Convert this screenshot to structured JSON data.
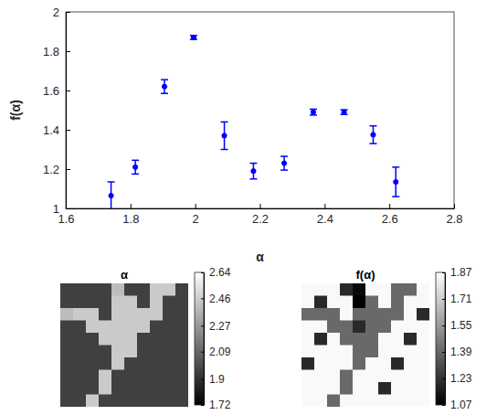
{
  "chart_data": [
    {
      "type": "scatter",
      "x_label": "α",
      "y_label": "f(α)",
      "color": "#0000ff",
      "marker": "o",
      "grid": false,
      "x": [
        1.74,
        1.815,
        1.905,
        1.995,
        2.09,
        2.18,
        2.275,
        2.365,
        2.46,
        2.55,
        2.62
      ],
      "y": [
        1.065,
        1.21,
        1.62,
        1.87,
        1.37,
        1.19,
        1.23,
        1.49,
        1.49,
        1.375,
        1.135
      ],
      "errors": [
        0.07,
        0.035,
        0.035,
        0.01,
        0.07,
        0.04,
        0.035,
        0.015,
        0.012,
        0.045,
        0.075
      ],
      "xlim": [
        1.6,
        2.8
      ],
      "xticks": [
        1.6,
        1.8,
        2,
        2.2,
        2.4,
        2.6,
        2.8
      ],
      "ylim": [
        1,
        2
      ],
      "yticks": [
        1,
        1.2,
        1.4,
        1.6,
        1.8,
        2
      ]
    },
    {
      "type": "heatmap",
      "title": "α",
      "tick_labels": false,
      "cells": [
        [
          1.95,
          1.95,
          1.95,
          1.95,
          2.4,
          1.95,
          1.95,
          2.45,
          2.45,
          1.95
        ],
        [
          1.95,
          1.95,
          1.95,
          1.95,
          2.45,
          2.45,
          1.95,
          2.45,
          1.95,
          1.95
        ],
        [
          2.4,
          2.45,
          2.45,
          1.95,
          2.45,
          2.45,
          2.45,
          2.45,
          1.95,
          1.95
        ],
        [
          1.95,
          1.95,
          2.45,
          2.45,
          2.45,
          2.45,
          2.45,
          1.95,
          1.95,
          1.95
        ],
        [
          1.95,
          1.95,
          1.95,
          2.45,
          2.45,
          2.45,
          1.95,
          1.95,
          1.95,
          1.95
        ],
        [
          1.95,
          1.95,
          1.95,
          1.95,
          2.45,
          2.45,
          1.95,
          1.95,
          1.95,
          1.95
        ],
        [
          1.95,
          1.95,
          1.95,
          1.95,
          2.45,
          1.95,
          1.95,
          1.95,
          1.95,
          1.95
        ],
        [
          1.95,
          1.95,
          1.95,
          2.45,
          1.95,
          1.95,
          1.95,
          1.95,
          1.95,
          1.95
        ],
        [
          1.95,
          1.95,
          1.95,
          2.45,
          1.95,
          1.95,
          1.95,
          1.95,
          1.95,
          1.95
        ],
        [
          1.95,
          1.95,
          2.45,
          1.95,
          1.95,
          1.95,
          1.95,
          1.95,
          1.95,
          1.95
        ]
      ],
      "colorbar_lim": [
        1.72,
        2.64
      ],
      "colorbar_ticks": [
        2.64,
        2.46,
        2.27,
        2.09,
        1.9,
        1.72
      ]
    },
    {
      "type": "heatmap",
      "title": "f(α)",
      "tick_labels": false,
      "cells": [
        [
          1.85,
          1.85,
          1.85,
          1.2,
          1.1,
          1.85,
          1.85,
          1.4,
          1.4,
          1.85
        ],
        [
          1.85,
          1.2,
          1.85,
          1.85,
          1.07,
          1.4,
          1.85,
          1.4,
          1.85,
          1.85
        ],
        [
          1.4,
          1.4,
          1.4,
          1.85,
          1.4,
          1.4,
          1.4,
          1.4,
          1.85,
          1.2
        ],
        [
          1.85,
          1.85,
          1.4,
          1.4,
          1.2,
          1.4,
          1.4,
          1.85,
          1.85,
          1.85
        ],
        [
          1.85,
          1.2,
          1.85,
          1.4,
          1.4,
          1.4,
          1.85,
          1.85,
          1.2,
          1.85
        ],
        [
          1.85,
          1.85,
          1.85,
          1.85,
          1.4,
          1.4,
          1.85,
          1.85,
          1.85,
          1.85
        ],
        [
          1.2,
          1.85,
          1.85,
          1.85,
          1.4,
          1.85,
          1.85,
          1.2,
          1.85,
          1.85
        ],
        [
          1.85,
          1.85,
          1.85,
          1.4,
          1.85,
          1.85,
          1.85,
          1.85,
          1.85,
          1.85
        ],
        [
          1.85,
          1.85,
          1.85,
          1.4,
          1.85,
          1.85,
          1.2,
          1.85,
          1.85,
          1.85
        ],
        [
          1.85,
          1.85,
          1.4,
          1.85,
          1.85,
          1.85,
          1.85,
          1.85,
          1.85,
          1.85
        ]
      ],
      "colorbar_lim": [
        1.07,
        1.87
      ],
      "colorbar_ticks": [
        1.87,
        1.71,
        1.55,
        1.39,
        1.23,
        1.07
      ]
    }
  ]
}
